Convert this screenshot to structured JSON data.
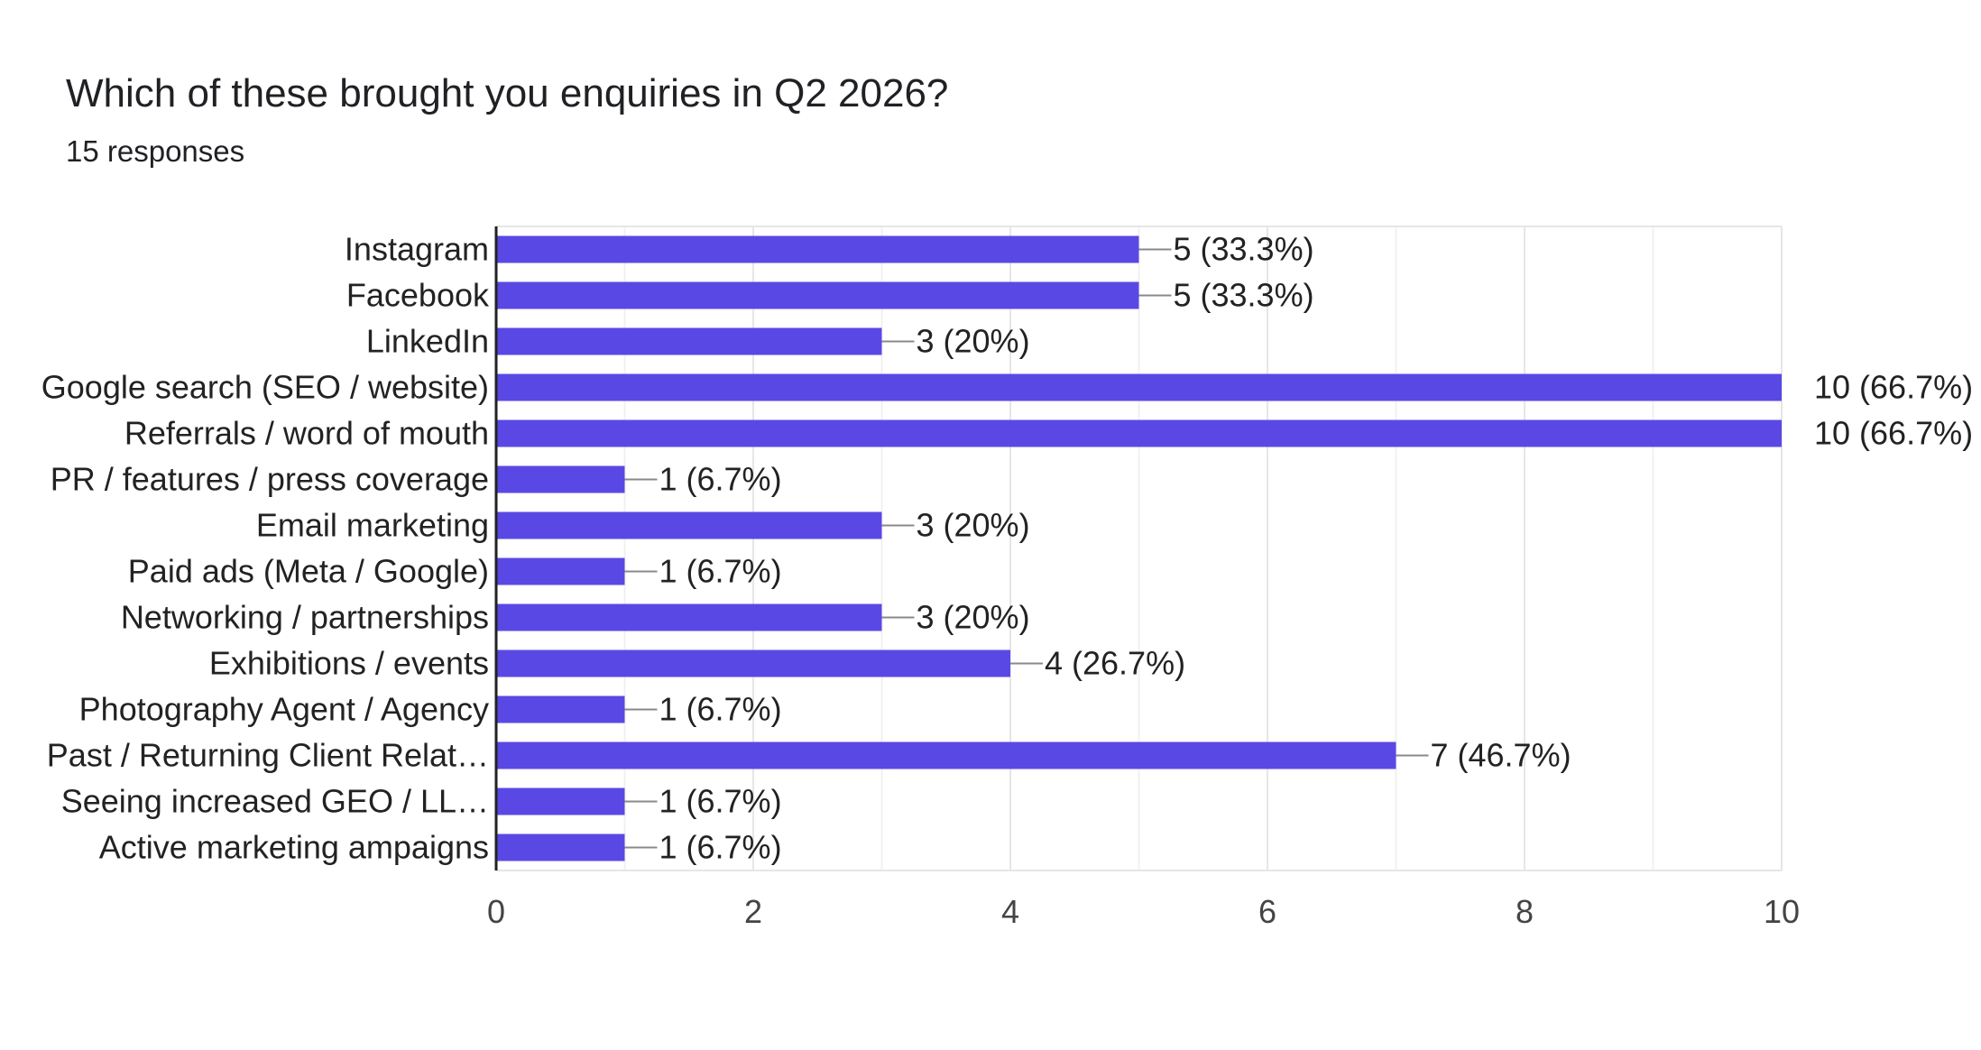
{
  "header": {
    "title": "Which of these brought you enquiries in Q2 2026?",
    "subtitle": "15 responses"
  },
  "colors": {
    "bar": "#5A48E5",
    "grid": "#E6E6E6",
    "axis": "#222222",
    "leader": "#8A8A8A"
  },
  "chart_data": {
    "type": "bar",
    "orientation": "horizontal",
    "title": "Which of these brought you enquiries in Q2 2026?",
    "subtitle": "15 responses",
    "categories": [
      "Instagram",
      "Facebook",
      "LinkedIn",
      "Google search (SEO / website)",
      "Referrals / word of mouth",
      "PR / features / press coverage",
      "Email marketing",
      "Paid ads (Meta / Google)",
      "Networking / partnerships",
      "Exhibitions / events",
      "Photography Agent / Agency",
      "Past / Returning Client Relat…",
      "Seeing increased GEO / LL…",
      "Active marketing ampaigns"
    ],
    "values": [
      5,
      5,
      3,
      10,
      10,
      1,
      3,
      1,
      3,
      4,
      1,
      7,
      1,
      1
    ],
    "value_labels": [
      "5 (33.3%)",
      "5 (33.3%)",
      "3 (20%)",
      "10 (66.7%)",
      "10 (66.7%)",
      "1 (6.7%)",
      "3 (20%)",
      "1 (6.7%)",
      "3 (20%)",
      "4 (26.7%)",
      "1 (6.7%)",
      "7 (46.7%)",
      "1 (6.7%)",
      "1 (6.7%)"
    ],
    "xlim": [
      0,
      10
    ],
    "xticks": [
      "0",
      "2",
      "4",
      "6",
      "8",
      "10"
    ],
    "grid": true,
    "legend": "none"
  }
}
